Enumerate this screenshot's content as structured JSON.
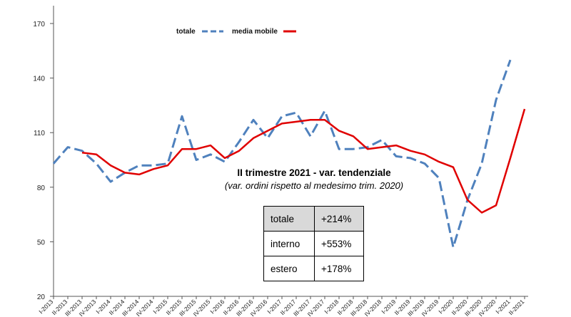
{
  "chart_data": {
    "type": "line",
    "categories": [
      "I-2013",
      "II-2013",
      "III-2013",
      "IV-2013",
      "I-2014",
      "II-2014",
      "III-2014",
      "IV-2014",
      "I-2015",
      "II-2015",
      "III-2015",
      "IV-2015",
      "I-2016",
      "II-2016",
      "III-2016",
      "IV-2016",
      "I-2017",
      "II-2017",
      "III-2017",
      "IV-2017",
      "I-2018",
      "II-2018",
      "III-2018",
      "IV-2018",
      "I-2019",
      "II-2019",
      "III-2019",
      "IV-2019",
      "I-2020",
      "II-2020",
      "III-2020",
      "IV-2020",
      "I-2021",
      "II-2021"
    ],
    "series": [
      {
        "name": "totale",
        "color": "#4f81bd",
        "style": "dashed",
        "values": [
          93,
          102,
          100,
          93,
          83,
          88,
          92,
          92,
          93,
          119,
          95,
          98,
          94,
          105,
          117,
          107,
          119,
          121,
          108,
          122,
          101,
          101,
          102,
          106,
          97,
          96,
          93,
          85,
          47,
          73,
          93,
          128,
          150,
          null
        ]
      },
      {
        "name": "media mobile",
        "color": "#e00000",
        "style": "solid",
        "values": [
          null,
          null,
          99,
          98,
          92,
          88,
          87,
          90,
          92,
          101,
          101,
          103,
          96,
          100,
          107,
          111,
          115,
          116,
          117,
          117,
          111,
          108,
          101,
          102,
          103,
          100,
          98,
          94,
          91,
          73,
          66,
          70,
          96,
          123
        ]
      }
    ],
    "ylim": [
      20,
      170
    ],
    "yticks": [
      20,
      50,
      80,
      110,
      140,
      170
    ],
    "xlabel": "",
    "ylabel": "",
    "legend_placement": "top-center",
    "grid": false
  },
  "annotation": {
    "title": "II trimestre 2021 - var. tendenziale",
    "subtitle": "(var. ordini rispetto al medesimo trim. 2020)"
  },
  "summary_table": [
    {
      "label": "totale",
      "value": "+214%"
    },
    {
      "label": "interno",
      "value": "+553%"
    },
    {
      "label": "estero",
      "value": "+178%"
    }
  ]
}
